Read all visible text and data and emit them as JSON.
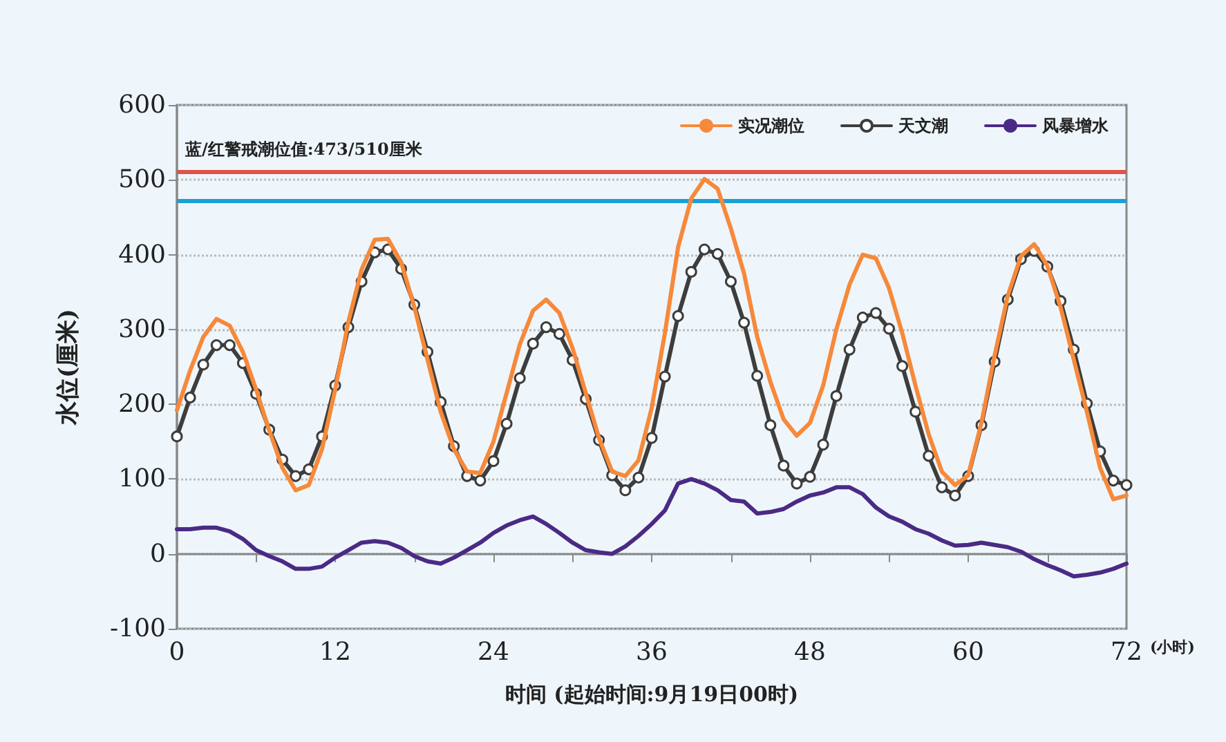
{
  "chart_data": {
    "type": "line",
    "xlabel": "时间 (起始时间:9月19日00时)",
    "ylabel": "水位(厘米)",
    "annotations": [
      "蓝/红警戒潮位值:473/510厘米",
      "(小时)"
    ],
    "x": [
      0,
      1,
      2,
      3,
      4,
      5,
      6,
      7,
      8,
      9,
      10,
      11,
      12,
      13,
      14,
      15,
      16,
      17,
      18,
      19,
      20,
      21,
      22,
      23,
      24,
      25,
      26,
      27,
      28,
      29,
      30,
      31,
      32,
      33,
      34,
      35,
      36,
      37,
      38,
      39,
      40,
      41,
      42,
      43,
      44,
      45,
      46,
      47,
      48,
      49,
      50,
      51,
      52,
      53,
      54,
      55,
      56,
      57,
      58,
      59,
      60,
      61,
      62,
      63,
      64,
      65,
      66,
      67,
      68,
      69,
      70,
      71,
      72
    ],
    "series": [
      {
        "name": "实况潮位",
        "color": "#f7893a",
        "marker": "none",
        "values": [
          192,
          245,
          290,
          314,
          305,
          270,
          220,
          165,
          115,
          85,
          92,
          140,
          220,
          310,
          380,
          420,
          421,
          390,
          330,
          260,
          190,
          140,
          110,
          108,
          150,
          215,
          280,
          325,
          340,
          322,
          275,
          215,
          155,
          110,
          104,
          125,
          195,
          295,
          410,
          475,
          501,
          488,
          435,
          375,
          290,
          230,
          180,
          158,
          175,
          225,
          300,
          360,
          400,
          395,
          355,
          295,
          225,
          160,
          110,
          92,
          105,
          175,
          265,
          345,
          398,
          414,
          385,
          330,
          260,
          190,
          115,
          73,
          78
        ]
      },
      {
        "name": "天文潮",
        "color": "#3d3d3d",
        "marker": "circle",
        "values": [
          157,
          209,
          253,
          279,
          279,
          255,
          214,
          166,
          126,
          104,
          113,
          157,
          225,
          303,
          364,
          403,
          407,
          381,
          333,
          270,
          203,
          144,
          104,
          98,
          124,
          174,
          235,
          281,
          303,
          294,
          259,
          207,
          152,
          105,
          85,
          102,
          155,
          237,
          318,
          377,
          407,
          401,
          364,
          309,
          238,
          172,
          118,
          94,
          103,
          146,
          211,
          273,
          316,
          322,
          301,
          251,
          190,
          131,
          89,
          78,
          104,
          172,
          257,
          340,
          394,
          405,
          384,
          338,
          273,
          201,
          137,
          98,
          92
        ]
      },
      {
        "name": "风暴增水",
        "color": "#4b2a85",
        "marker": "none",
        "values": [
          33,
          33,
          35,
          35,
          30,
          20,
          5,
          -3,
          -10,
          -20,
          -20,
          -17,
          -5,
          5,
          15,
          17,
          15,
          8,
          -3,
          -10,
          -13,
          -5,
          5,
          15,
          28,
          38,
          45,
          50,
          40,
          28,
          15,
          5,
          2,
          0,
          10,
          24,
          40,
          58,
          94,
          100,
          94,
          85,
          72,
          70,
          54,
          56,
          60,
          70,
          78,
          82,
          89,
          89,
          80,
          62,
          50,
          43,
          33,
          27,
          18,
          11,
          12,
          15,
          12,
          9,
          3,
          -7,
          -15,
          -22,
          -30,
          -28,
          -25,
          -20,
          -13
        ]
      }
    ],
    "ref_lines": [
      {
        "axis": "y",
        "value": 510,
        "color": "#e2524a"
      },
      {
        "axis": "y",
        "value": 473,
        "color": "#1aa0d6"
      }
    ],
    "xlim": [
      0,
      72
    ],
    "xticks": [
      0,
      {
        "value": 6,
        "label": null
      },
      12,
      {
        "value": 18,
        "label": null
      },
      24,
      {
        "value": 30,
        "label": null
      },
      36,
      {
        "value": 42,
        "label": null
      },
      48,
      {
        "value": 54,
        "label": null
      },
      60,
      {
        "value": 66,
        "label": null
      },
      72
    ],
    "ylim": [
      -100,
      600
    ],
    "yticks": [
      -100,
      0,
      100,
      200,
      300,
      400,
      500,
      600
    ],
    "grid": "y",
    "legend": "top right",
    "line_style": "solid"
  }
}
